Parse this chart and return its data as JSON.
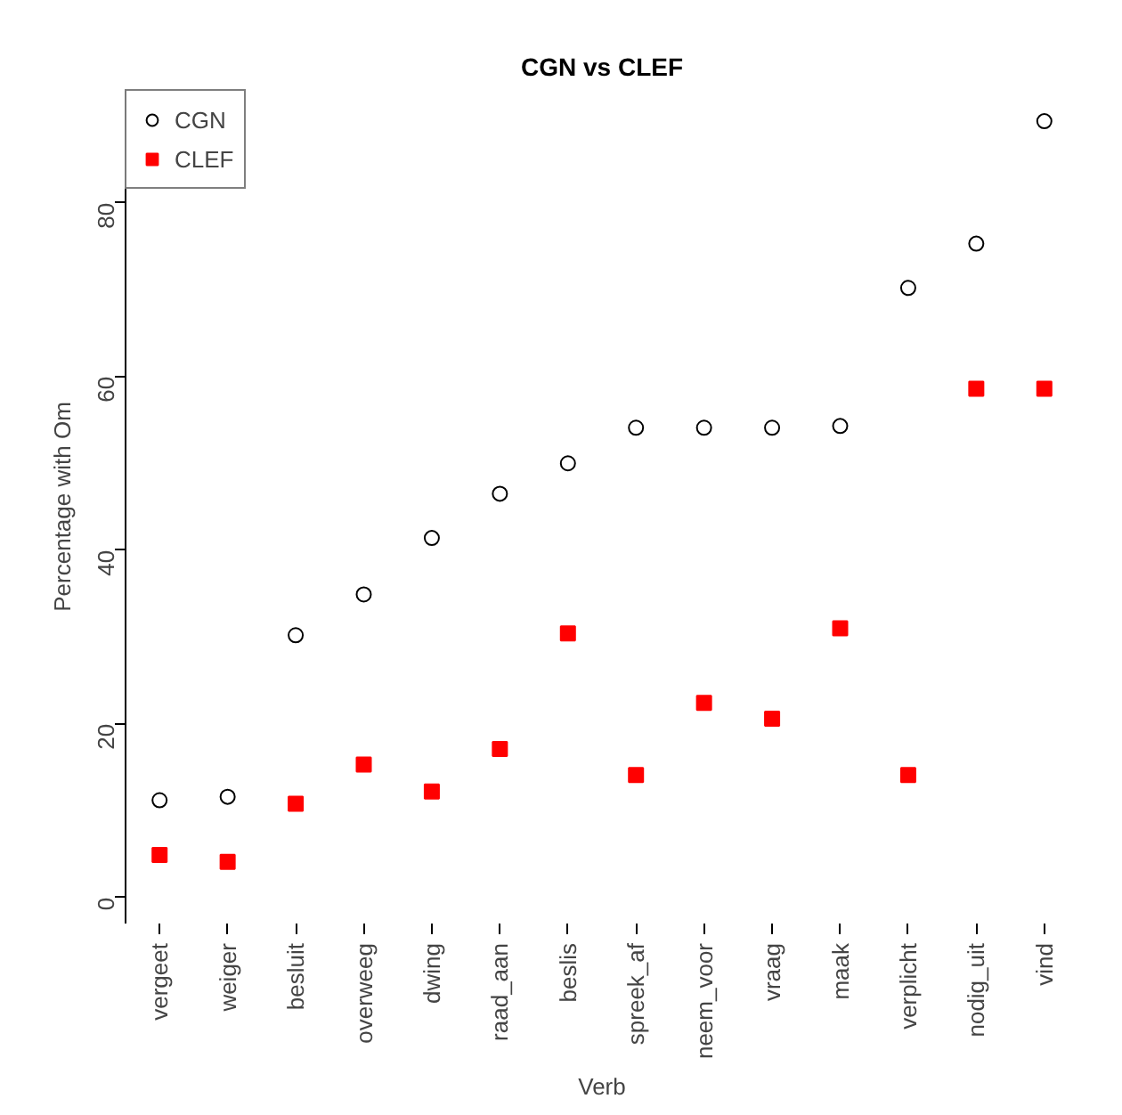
{
  "chart_data": {
    "type": "scatter",
    "title": "CGN vs CLEF",
    "xlabel": "Verb",
    "ylabel": "Percentage with Om",
    "categories": [
      "vergeet",
      "weiger",
      "besluit",
      "overweeg",
      "dwing",
      "raad_aan",
      "beslis",
      "spreek_af",
      "neem_voor",
      "vraag",
      "maak",
      "verplicht",
      "nodig_uit",
      "vind"
    ],
    "series": [
      {
        "name": "CGN",
        "color": "#000000",
        "marker": "circle",
        "values": [
          11.2,
          11.6,
          30.2,
          34.9,
          41.4,
          46.5,
          50.0,
          54.1,
          54.1,
          54.1,
          54.3,
          70.2,
          75.3,
          89.4
        ]
      },
      {
        "name": "CLEF",
        "color": "#ff0000",
        "marker": "square",
        "values": [
          4.9,
          4.1,
          10.8,
          15.3,
          12.2,
          17.1,
          30.4,
          14.1,
          22.4,
          20.6,
          31.0,
          14.1,
          58.6,
          58.6
        ]
      }
    ],
    "ylim": [
      -3,
      93
    ],
    "yticks": [
      0,
      20,
      40,
      60,
      80
    ],
    "grid": false,
    "legend": "top left"
  }
}
